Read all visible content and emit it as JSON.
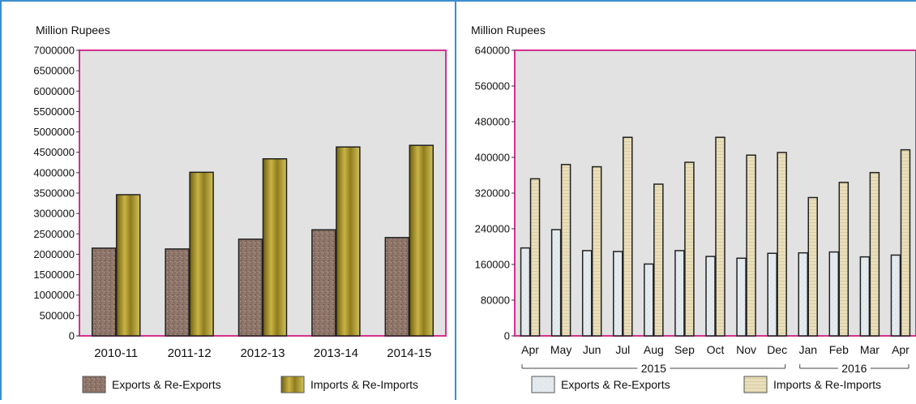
{
  "colors": {
    "panel_border": "#3a8fd0",
    "plot_border": "#d6318f",
    "plot_bg": "#e2e2e2",
    "exports_fill_left": "#8d7468",
    "imports_fill_left": "#9c8a2a",
    "exports_fill_right": "#e4ebef",
    "imports_fill_right": "#e9dfbc"
  },
  "chart_data": [
    {
      "type": "bar",
      "ylabel": "Million Rupees",
      "ylim": [
        0,
        7000000
      ],
      "yticks": [
        "0",
        "500000",
        "1000000",
        "1500000",
        "2000000",
        "2500000",
        "3000000",
        "3500000",
        "4000000",
        "4500000",
        "5000000",
        "5500000",
        "6000000",
        "6500000",
        "7000000"
      ],
      "categories": [
        "2010-11",
        "2011-12",
        "2012-13",
        "2013-14",
        "2014-15"
      ],
      "series": [
        {
          "name": "Exports & Re-Exports",
          "values": [
            2150000,
            2130000,
            2370000,
            2600000,
            2410000
          ]
        },
        {
          "name": "Imports & Re-Imports",
          "values": [
            3460000,
            4010000,
            4340000,
            4630000,
            4670000
          ]
        }
      ],
      "legend": "bottom"
    },
    {
      "type": "bar",
      "ylabel": "Million Rupees",
      "ylim": [
        0,
        640000
      ],
      "yticks": [
        "0",
        "80000",
        "160000",
        "240000",
        "320000",
        "400000",
        "480000",
        "560000",
        "640000"
      ],
      "categories": [
        "Apr",
        "May",
        "Jun",
        "Jul",
        "Aug",
        "Sep",
        "Oct",
        "Nov",
        "Dec",
        "Jan",
        "Feb",
        "Mar",
        "Apr"
      ],
      "year_groups": [
        {
          "label": "2015",
          "from": 0,
          "to": 8
        },
        {
          "label": "2016",
          "from": 9,
          "to": 12
        }
      ],
      "series": [
        {
          "name": "Exports & Re-Exports",
          "values": [
            197000,
            238000,
            191000,
            189000,
            161000,
            191000,
            178000,
            174000,
            185000,
            186000,
            188000,
            177000,
            181000
          ]
        },
        {
          "name": "Imports & Re-Imports",
          "values": [
            352000,
            384000,
            379000,
            445000,
            340000,
            389000,
            445000,
            405000,
            411000,
            310000,
            344000,
            366000,
            417000
          ]
        }
      ],
      "legend": "bottom"
    }
  ]
}
